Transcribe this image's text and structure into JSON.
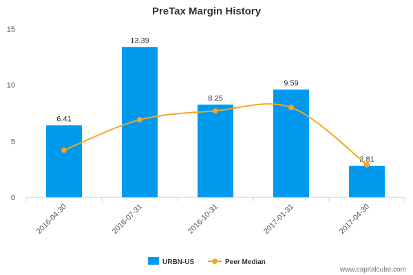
{
  "chart_data": {
    "type": "bar",
    "title": "PreTax Margin History",
    "categories": [
      "2016-04-30",
      "2016-07-31",
      "2016-10-31",
      "2017-01-31",
      "2017-04-30"
    ],
    "series": [
      {
        "name": "URBN-US",
        "kind": "bar",
        "values": [
          6.41,
          13.39,
          8.25,
          9.59,
          2.81
        ],
        "data_labels": [
          "6.41",
          "13.39",
          "8.25",
          "9.59",
          "2.81"
        ],
        "color": "#0099ee"
      },
      {
        "name": "Peer Median",
        "kind": "line",
        "values": [
          4.2,
          6.9,
          7.7,
          8.0,
          2.9
        ],
        "color": "#f5a623"
      }
    ],
    "ylim": [
      0,
      15
    ],
    "yticks": [
      "0",
      "5",
      "10",
      "15"
    ],
    "grid": false,
    "legend": "bottom-center"
  },
  "credit": "www.capitalcube.com"
}
